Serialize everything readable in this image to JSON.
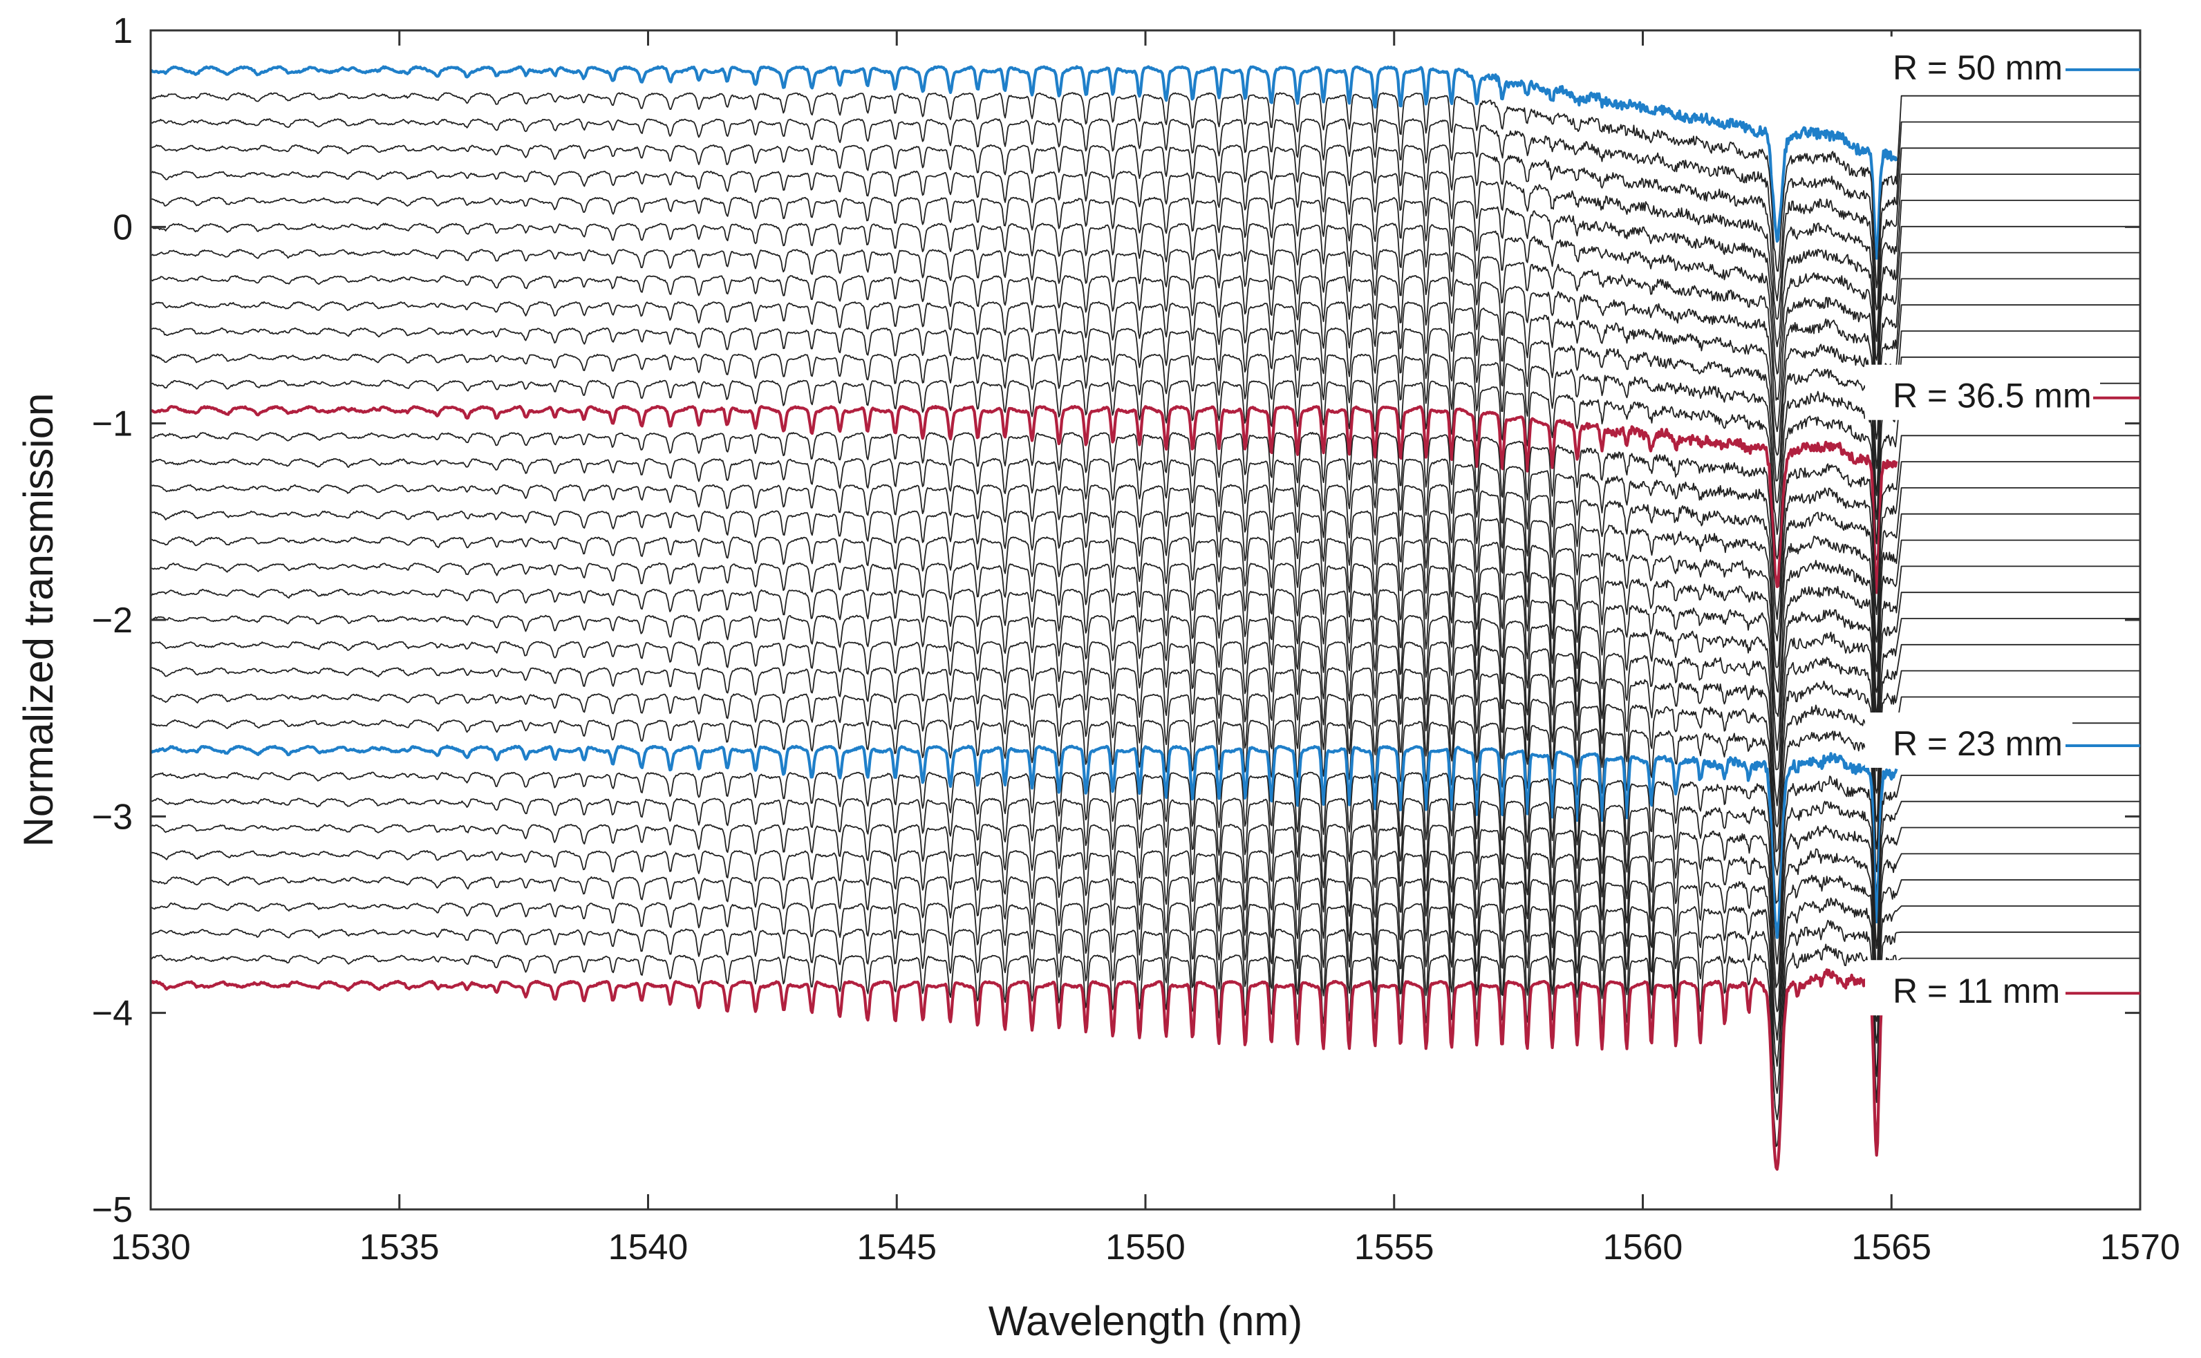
{
  "chart_data": {
    "type": "line",
    "title": "",
    "xlabel": "Wavelength (nm)",
    "ylabel": "Normalized transmission",
    "xlim": [
      1530,
      1570
    ],
    "ylim": [
      -5,
      1
    ],
    "xticks": [
      1530,
      1535,
      1540,
      1545,
      1550,
      1555,
      1560,
      1565,
      1570
    ],
    "yticks": [
      1,
      0,
      -1,
      -2,
      -3,
      -4,
      -5
    ],
    "xtick_labels": [
      "1530",
      "1535",
      "1540",
      "1545",
      "1550",
      "1555",
      "1560",
      "1565",
      "1570"
    ],
    "ytick_labels": [
      "1",
      "0",
      "−1",
      "−2",
      "−3",
      "−4",
      "−5"
    ],
    "grid": false,
    "series_count": 36,
    "series_offset_step": 0.133,
    "first_series_baseline": 0.8,
    "last_series_baseline": -3.9,
    "resonance_dips_nm": [
      1562.7,
      1564.7
    ],
    "annotations": [
      {
        "label": "R = 50 mm",
        "x": 1565,
        "y": 0.8,
        "color": "#1f7fc9"
      },
      {
        "label": "R = 36.5 mm",
        "x": 1565,
        "y": -0.87,
        "color": "#b1203f"
      },
      {
        "label": "R = 23 mm",
        "x": 1565,
        "y": -2.64,
        "color": "#1f7fc9"
      },
      {
        "label": "R = 11 mm",
        "x": 1565,
        "y": -3.9,
        "color": "#b1203f"
      }
    ],
    "highlighted_series": [
      {
        "name": "R = 50 mm",
        "index": 0,
        "color": "#1f7fc9"
      },
      {
        "name": "R = 36.5 mm",
        "index": 13,
        "color": "#b1203f"
      },
      {
        "name": "R = 23 mm",
        "index": 26,
        "color": "#1f7fc9"
      },
      {
        "name": "R = 11 mm",
        "index": 35,
        "color": "#b1203f"
      }
    ],
    "other_series_color": "#222222"
  }
}
